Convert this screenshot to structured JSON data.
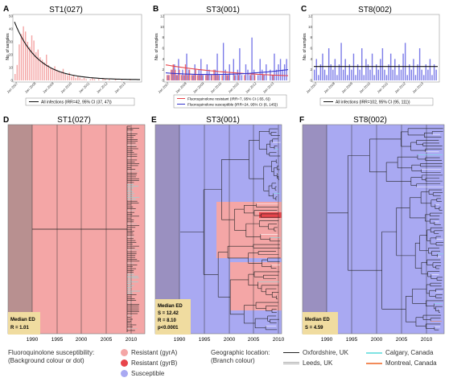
{
  "panels": {
    "A": {
      "letter": "A",
      "title": "ST1(027)",
      "ylabel": "No. of samples",
      "ticks": [
        "Jan 2007",
        "Jan 2008",
        "Jan 2009",
        "Jan 2010",
        "Jan 2011",
        "Jan 2012",
        "Jan 2013"
      ],
      "legend": [
        "All infections (IRR=42, 95% CI (37, 47))"
      ]
    },
    "B": {
      "letter": "B",
      "title": "ST3(001)",
      "ylabel": "No. of samples",
      "ticks": [
        "Jan 2007",
        "Jan 2008",
        "Jan 2009",
        "Jan 2010",
        "Jan 2011",
        "Jan 2012",
        "Jan 2013"
      ],
      "legend": [
        "Fluoroquinolone resistant (IRR=7, 95% CI (-55, 6))",
        "Fluoroquinolone susceptible (IRR=24, 95% CI (6, 145))"
      ]
    },
    "C": {
      "letter": "C",
      "title": "ST8(002)",
      "ylabel": "No. of samples",
      "ticks": [
        "Jan 2007",
        "Jan 2008",
        "Jan 2009",
        "Jan 2010",
        "Jan 2011",
        "Jan 2012",
        "Jan 2013"
      ],
      "legend": [
        "All infections (IRR=102, 95% CI (95, 111))"
      ]
    },
    "D": {
      "letter": "D",
      "title": "ST1(027)",
      "stats": [
        "Median ED",
        "R = 1.01"
      ]
    },
    "E": {
      "letter": "E",
      "title": "ST3(001)",
      "stats": [
        "Median ED",
        "S = 12.42",
        "R = 8.10",
        "p<0.0001"
      ]
    },
    "F": {
      "letter": "F",
      "title": "ST8(002)",
      "stats": [
        "Median ED",
        "S = 4.59"
      ]
    }
  },
  "tree_ticks": [
    "1990",
    "1995",
    "2000",
    "2005",
    "2010"
  ],
  "legend": {
    "fq_title_1": "Fluoroquinolone susceptibility:",
    "fq_title_2": "(Background colour or dot)",
    "fq_items": [
      "Resistant (gyrA)",
      "Resistant (gyrB)",
      "Susceptible"
    ],
    "geo_title_1": "Geographic location:",
    "geo_title_2": "(Branch colour)",
    "geo_items": [
      "Oxfordshire, UK",
      "Leeds, UK",
      "Calgary, Canada",
      "Montreal, Canada"
    ]
  },
  "colors": {
    "resistant_gyrA": "#f4a6a6",
    "resistant_gyrB": "#e8454b",
    "susceptible": "#a9a9f2",
    "oxfordshire": "#222222",
    "leeds": "#bbbbbb",
    "calgary": "#7fe3e3",
    "montreal": "#f28b5a"
  },
  "chart_data": [
    {
      "type": "bar",
      "panel": "A",
      "title": "ST1(027)",
      "ylabel": "No. of samples",
      "ylim": [
        0,
        50
      ],
      "x_range": [
        "2007-01",
        "2013-04"
      ],
      "values": [
        5,
        12,
        28,
        36,
        42,
        38,
        30,
        26,
        35,
        31,
        22,
        24,
        18,
        16,
        14,
        20,
        12,
        10,
        9,
        11,
        8,
        7,
        6,
        9,
        5,
        4,
        6,
        3,
        4,
        2,
        3,
        2,
        1,
        2,
        1,
        0,
        1,
        2,
        1,
        0,
        1,
        0,
        1,
        1,
        0,
        1,
        0,
        0,
        1,
        0,
        0,
        1,
        0,
        0,
        0,
        1,
        0,
        0,
        0,
        0
      ],
      "series": [
        {
          "name": "All infections (IRR=42, 95% CI (37, 47))"
        }
      ]
    },
    {
      "type": "bar",
      "panel": "B",
      "title": "ST3(001)",
      "ylabel": "No. of samples",
      "ylim": [
        0,
        12
      ],
      "x_range": [
        "2007-01",
        "2013-04"
      ],
      "resistant": [
        1,
        1,
        2,
        3,
        2,
        1,
        2,
        1,
        1,
        3,
        1,
        2,
        1,
        1,
        2,
        1,
        1,
        1,
        0,
        1,
        1,
        0,
        1,
        2,
        1,
        1,
        0,
        1,
        0,
        1,
        1,
        0,
        0,
        1,
        0,
        1,
        0,
        0,
        1,
        0,
        0,
        1,
        0,
        1,
        0,
        0,
        0,
        1,
        0,
        0,
        0,
        0,
        1,
        0,
        0,
        0,
        0,
        0,
        0,
        0
      ],
      "susceptible": [
        0,
        1,
        0,
        2,
        3,
        1,
        4,
        0,
        2,
        1,
        5,
        2,
        0,
        1,
        3,
        0,
        2,
        4,
        1,
        0,
        3,
        2,
        1,
        0,
        2,
        5,
        1,
        0,
        7,
        2,
        1,
        3,
        0,
        4,
        1,
        2,
        6,
        1,
        0,
        3,
        2,
        1,
        8,
        2,
        0,
        1,
        4,
        2,
        1,
        3,
        0,
        2,
        1,
        5,
        2,
        3,
        4,
        2,
        3,
        4
      ],
      "series": [
        {
          "name": "Fluoroquinolone resistant (IRR=7, 95% CI (-55, 6))"
        },
        {
          "name": "Fluoroquinolone susceptible (IRR=24, 95% CI (6, 145))"
        }
      ]
    },
    {
      "type": "bar",
      "panel": "C",
      "title": "ST8(002)",
      "ylabel": "No. of samples",
      "ylim": [
        0,
        12
      ],
      "x_range": [
        "2007-01",
        "2013-04"
      ],
      "values": [
        2,
        4,
        1,
        3,
        5,
        2,
        1,
        6,
        3,
        2,
        4,
        1,
        3,
        7,
        2,
        4,
        1,
        3,
        2,
        5,
        1,
        3,
        2,
        6,
        1,
        4,
        3,
        2,
        5,
        1,
        3,
        2,
        4,
        6,
        2,
        1,
        3,
        5,
        2,
        4,
        1,
        3,
        2,
        5,
        7,
        1,
        3,
        2,
        4,
        1,
        3,
        6,
        2,
        1,
        3,
        2,
        4,
        1,
        3,
        2
      ],
      "series": [
        {
          "name": "All infections (IRR=102, 95% CI (95, 111))"
        }
      ]
    }
  ]
}
